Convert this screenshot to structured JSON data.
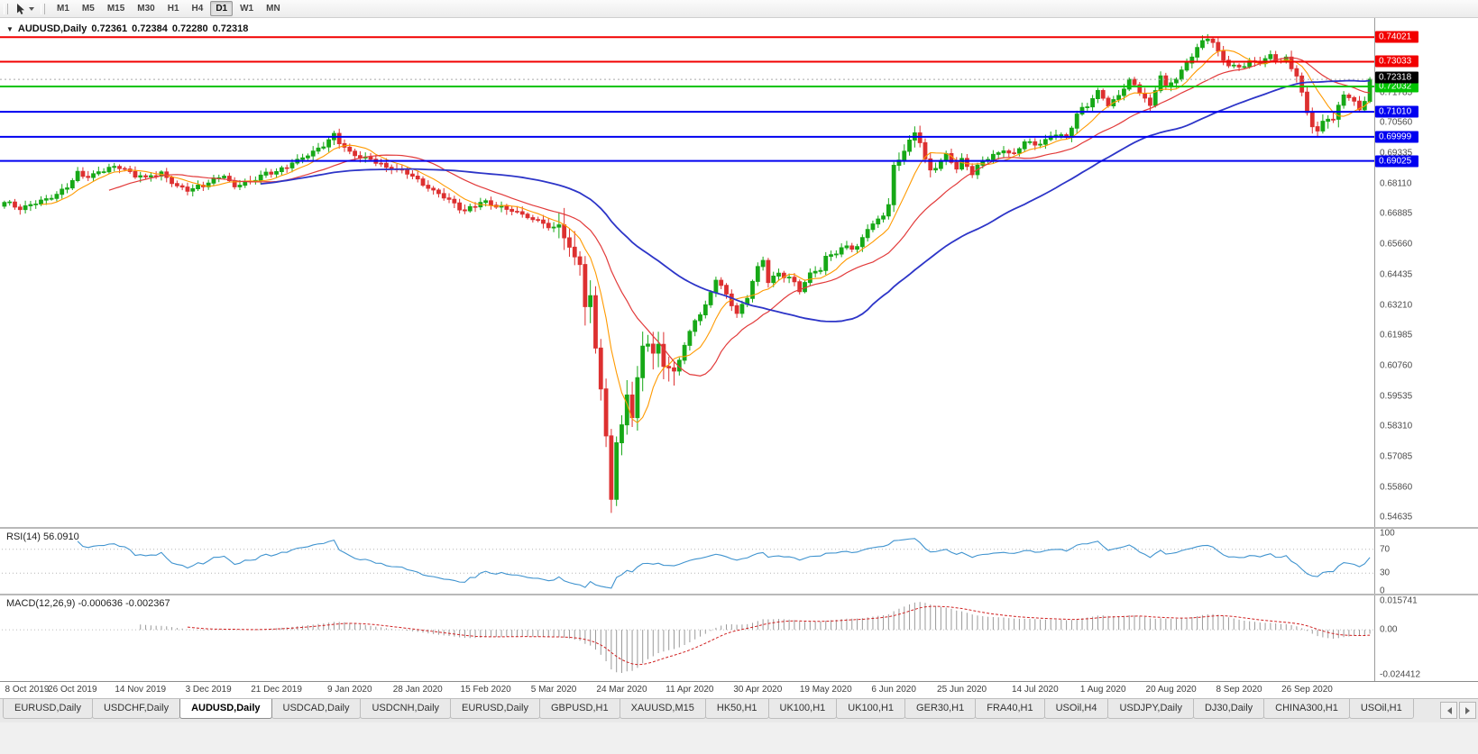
{
  "toolbar": {
    "timeframes": [
      "M1",
      "M5",
      "M15",
      "M30",
      "H1",
      "H4",
      "D1",
      "W1",
      "MN"
    ],
    "active_timeframe": "D1"
  },
  "chart_data": {
    "type": "candlestick",
    "title": {
      "symbol": "AUDUSD,Daily",
      "open": "0.72361",
      "high": "0.72384",
      "low": "0.72280",
      "close": "0.72318"
    },
    "x_labels": [
      "8 Oct 2019",
      "26 Oct 2019",
      "14 Nov 2019",
      "3 Dec 2019",
      "21 Dec 2019",
      "9 Jan 2020",
      "28 Jan 2020",
      "15 Feb 2020",
      "5 Mar 2020",
      "24 Mar 2020",
      "11 Apr 2020",
      "30 Apr 2020",
      "19 May 2020",
      "6 Jun 2020",
      "25 Jun 2020",
      "14 Jul 2020",
      "1 Aug 2020",
      "20 Aug 2020",
      "8 Sep 2020",
      "26 Sep 2020"
    ],
    "y_axis": {
      "ticks": [
        "0.71785",
        "0.70560",
        "0.69335",
        "0.68110",
        "0.66885",
        "0.65660",
        "0.64435",
        "0.63210",
        "0.61985",
        "0.60760",
        "0.59535",
        "0.58310",
        "0.57085",
        "0.55860",
        "0.54635"
      ],
      "current_price": {
        "label": "0.72318",
        "value": 0.72318
      }
    },
    "view_range": [
      0.545,
      0.7465
    ],
    "horizontal_lines": [
      {
        "label": "0.74021",
        "value": 0.74021,
        "color": "#f20000"
      },
      {
        "label": "0.73033",
        "value": 0.73033,
        "color": "#f20000"
      },
      {
        "label": "0.72032",
        "value": 0.72032,
        "color": "#00c400"
      },
      {
        "label": "0.71010",
        "value": 0.7101,
        "color": "#0000f0"
      },
      {
        "label": "0.69999",
        "value": 0.69999,
        "color": "#0000f0"
      },
      {
        "label": "0.69025",
        "value": 0.69025,
        "color": "#0000f0"
      }
    ],
    "candles": {
      "count": 262,
      "up_color": "#17a817",
      "down_color": "#dd3030",
      "close_anchors": [
        [
          0,
          0.6738
        ],
        [
          3,
          0.6706
        ],
        [
          6,
          0.673
        ],
        [
          9,
          0.676
        ],
        [
          12,
          0.68
        ],
        [
          14,
          0.685
        ],
        [
          16,
          0.6836
        ],
        [
          19,
          0.686
        ],
        [
          22,
          0.6885
        ],
        [
          24,
          0.6855
        ],
        [
          27,
          0.6835
        ],
        [
          30,
          0.685
        ],
        [
          33,
          0.6798
        ],
        [
          36,
          0.679
        ],
        [
          39,
          0.6818
        ],
        [
          42,
          0.684
        ],
        [
          44,
          0.6795
        ],
        [
          47,
          0.6822
        ],
        [
          50,
          0.6852
        ],
        [
          53,
          0.687
        ],
        [
          56,
          0.6902
        ],
        [
          59,
          0.6935
        ],
        [
          62,
          0.6985
        ],
        [
          63,
          0.7008
        ],
        [
          65,
          0.696
        ],
        [
          67,
          0.6922
        ],
        [
          70,
          0.6905
        ],
        [
          73,
          0.6878
        ],
        [
          76,
          0.6868
        ],
        [
          79,
          0.6828
        ],
        [
          82,
          0.6778
        ],
        [
          85,
          0.674
        ],
        [
          88,
          0.6702
        ],
        [
          91,
          0.6742
        ],
        [
          94,
          0.6718
        ],
        [
          97,
          0.6698
        ],
        [
          100,
          0.6678
        ],
        [
          103,
          0.6655
        ],
        [
          105,
          0.6628
        ],
        [
          106,
          0.6652
        ],
        [
          107,
          0.6598
        ],
        [
          108,
          0.6545
        ],
        [
          109,
          0.6498
        ],
        [
          110,
          0.6478
        ],
        [
          111,
          0.629
        ],
        [
          112,
          0.6338
        ],
        [
          113,
          0.6158
        ],
        [
          114,
          0.5978
        ],
        [
          115,
          0.5768
        ],
        [
          116,
          0.5548
        ],
        [
          117,
          0.5798
        ],
        [
          118,
          0.5818
        ],
        [
          119,
          0.5958
        ],
        [
          120,
          0.5888
        ],
        [
          121,
          0.6018
        ],
        [
          122,
          0.6128
        ],
        [
          123,
          0.6168
        ],
        [
          124,
          0.6098
        ],
        [
          125,
          0.6138
        ],
        [
          126,
          0.6078
        ],
        [
          128,
          0.6048
        ],
        [
          130,
          0.6168
        ],
        [
          132,
          0.6258
        ],
        [
          134,
          0.6318
        ],
        [
          136,
          0.6428
        ],
        [
          138,
          0.6358
        ],
        [
          140,
          0.6288
        ],
        [
          142,
          0.6358
        ],
        [
          144,
          0.6478
        ],
        [
          145,
          0.6508
        ],
        [
          146,
          0.6418
        ],
        [
          148,
          0.6448
        ],
        [
          150,
          0.6428
        ],
        [
          152,
          0.6378
        ],
        [
          154,
          0.6448
        ],
        [
          156,
          0.6468
        ],
        [
          157,
          0.6518
        ],
        [
          159,
          0.6538
        ],
        [
          161,
          0.6558
        ],
        [
          163,
          0.6548
        ],
        [
          165,
          0.6628
        ],
        [
          167,
          0.6658
        ],
        [
          169,
          0.6728
        ],
        [
          170,
          0.6878
        ],
        [
          172,
          0.6958
        ],
        [
          174,
          0.7008
        ],
        [
          175,
          0.6988
        ],
        [
          176,
          0.6898
        ],
        [
          177,
          0.6848
        ],
        [
          178,
          0.6878
        ],
        [
          180,
          0.6928
        ],
        [
          182,
          0.6878
        ],
        [
          183,
          0.6908
        ],
        [
          185,
          0.6858
        ],
        [
          187,
          0.6902
        ],
        [
          189,
          0.6922
        ],
        [
          191,
          0.6942
        ],
        [
          193,
          0.6922
        ],
        [
          195,
          0.6982
        ],
        [
          197,
          0.6968
        ],
        [
          199,
          0.6988
        ],
        [
          201,
          0.7012
        ],
        [
          203,
          0.6988
        ],
        [
          205,
          0.7092
        ],
        [
          207,
          0.7122
        ],
        [
          209,
          0.7188
        ],
        [
          211,
          0.7138
        ],
        [
          213,
          0.7168
        ],
        [
          215,
          0.7228
        ],
        [
          217,
          0.7178
        ],
        [
          219,
          0.7122
        ],
        [
          221,
          0.7248
        ],
        [
          222,
          0.7198
        ],
        [
          224,
          0.7238
        ],
        [
          226,
          0.7298
        ],
        [
          228,
          0.7358
        ],
        [
          230,
          0.7398
        ],
        [
          231,
          0.7378
        ],
        [
          232,
          0.7338
        ],
        [
          234,
          0.7288
        ],
        [
          236,
          0.7282
        ],
        [
          238,
          0.7308
        ],
        [
          240,
          0.7298
        ],
        [
          242,
          0.7322
        ],
        [
          244,
          0.7298
        ],
        [
          245,
          0.7312
        ],
        [
          246,
          0.728
        ],
        [
          247,
          0.7248
        ],
        [
          248,
          0.7178
        ],
        [
          249,
          0.7105
        ],
        [
          250,
          0.7058
        ],
        [
          251,
          0.703
        ],
        [
          252,
          0.7062
        ],
        [
          253,
          0.7086
        ],
        [
          254,
          0.707
        ],
        [
          255,
          0.7118
        ],
        [
          256,
          0.7178
        ],
        [
          257,
          0.7158
        ],
        [
          258,
          0.713
        ],
        [
          259,
          0.7108
        ],
        [
          260,
          0.7146
        ],
        [
          261,
          0.7232
        ]
      ],
      "pinned_extremes": [
        {
          "index": 111,
          "low": 0.6238
        },
        {
          "index": 116,
          "low": 0.5492
        },
        {
          "index": 174,
          "high": 0.7042
        },
        {
          "index": 230,
          "high": 0.7412
        },
        {
          "index": 251,
          "low": 0.7006
        }
      ]
    },
    "moving_averages": [
      {
        "period": 8,
        "color": "#ff9a00"
      },
      {
        "period": 21,
        "color": "#e23b3b"
      },
      {
        "period": 50,
        "color": "#2d35c8"
      }
    ],
    "indicators": {
      "rsi": {
        "label": "RSI(14) 56.0910",
        "period": 14,
        "value": "56.0910",
        "levels": [
          "100",
          "70",
          "30",
          "0"
        ],
        "level_lines": [
          70,
          30
        ],
        "color": "#3f93cf"
      },
      "macd": {
        "label": "MACD(12,26,9) -0.000636 -0.002367",
        "fast": 12,
        "slow": 26,
        "signal": 9,
        "values": "-0.000636 -0.002367",
        "axis_labels": [
          {
            "label": "0.015741",
            "value": 0.015741
          },
          {
            "label": "0.00",
            "value": 0
          },
          {
            "label": "-0.024412",
            "value": -0.024412
          }
        ],
        "histogram_color": "#9a9a9a",
        "signal_color": "#d02020"
      }
    }
  },
  "tabs": {
    "items": [
      "EURUSD,Daily",
      "USDCHF,Daily",
      "AUDUSD,Daily",
      "USDCAD,Daily",
      "USDCNH,Daily",
      "EURUSD,Daily",
      "GBPUSD,H1",
      "XAUUSD,M15",
      "HK50,H1",
      "UK100,H1",
      "UK100,H1",
      "GER30,H1",
      "FRA40,H1",
      "USOil,H4",
      "USDJPY,Daily",
      "DJ30,Daily",
      "CHINA300,H1",
      "USOil,H1"
    ],
    "active_index": 2
  }
}
